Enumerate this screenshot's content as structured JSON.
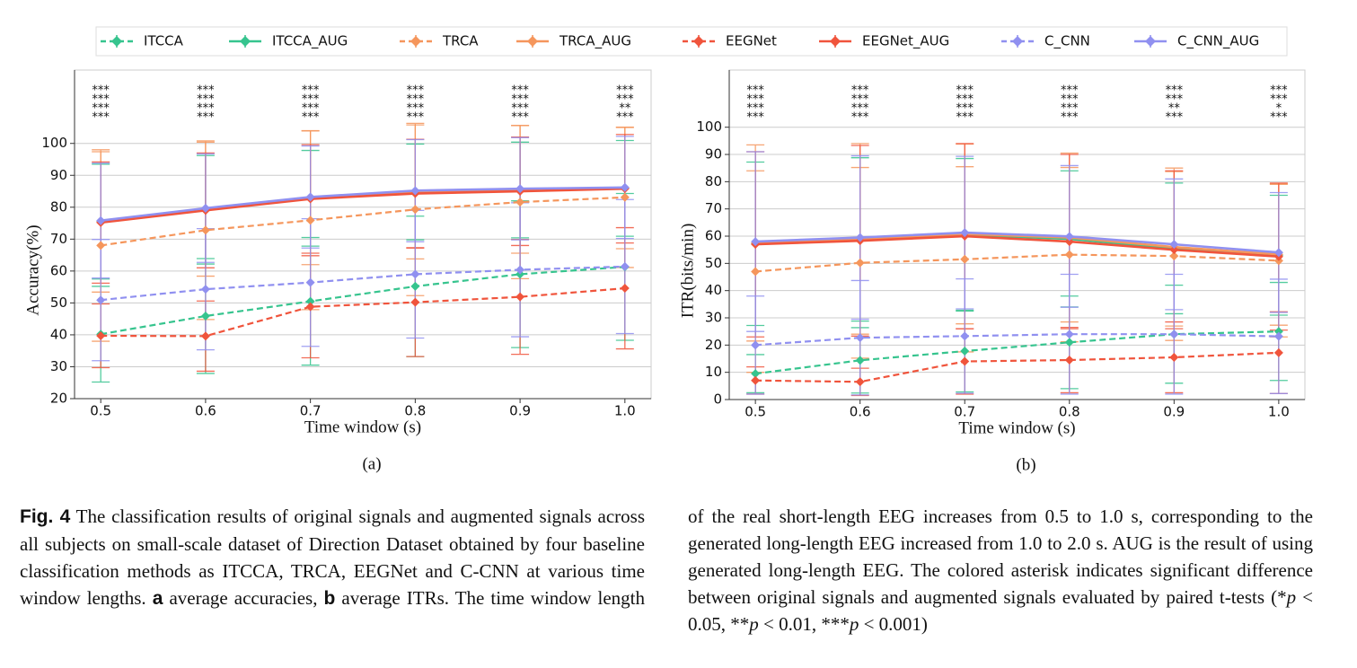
{
  "chart_data": [
    {
      "type": "line",
      "label": "(a)",
      "ylabel": "Accuracy(%)",
      "xlabel": "Time window (s)",
      "legend": "top",
      "grid": true,
      "x": [
        0.5,
        0.6,
        0.7,
        0.8,
        0.9,
        1.0
      ],
      "xlim": [
        0.475,
        1.025
      ],
      "xticks": [
        0.5,
        0.6,
        0.7,
        0.8,
        0.9,
        {
          "value": 1,
          "label": "1.0"
        }
      ],
      "ylim": [
        20,
        123
      ],
      "yticks": [
        20,
        30,
        40,
        50,
        60,
        70,
        80,
        90,
        100
      ],
      "series": [
        {
          "name": "ITCCA",
          "color": "#36c48e",
          "linestyle": "dashed",
          "values": [
            40.2,
            45.9,
            50.5,
            55.2,
            59.0,
            61.3
          ],
          "errors": [
            15,
            18,
            20,
            22,
            23,
            23
          ]
        },
        {
          "name": "ITCCA_AUG",
          "color": "#36c48e",
          "linestyle": "solid",
          "values": [
            75.5,
            79.2,
            82.8,
            84.8,
            85.4,
            85.9
          ],
          "errors": [
            18,
            17,
            15,
            15,
            15,
            15
          ],
          "significance": [
            "***",
            "***",
            "***",
            "***",
            "***",
            "***"
          ]
        },
        {
          "name": "TRCA",
          "color": "#f5965c",
          "linestyle": "dashed",
          "values": [
            68.0,
            72.8,
            75.9,
            79.3,
            81.6,
            83.1
          ],
          "errors": [
            30,
            28,
            28,
            27,
            24,
            22
          ]
        },
        {
          "name": "TRCA_AUG",
          "color": "#f5965c",
          "linestyle": "solid",
          "values": [
            75.4,
            79.4,
            83.0,
            84.8,
            85.6,
            86.0
          ],
          "errors": [
            22,
            21,
            21,
            21,
            20,
            19
          ],
          "significance": [
            "***",
            "***",
            "***",
            "***",
            "***",
            "**"
          ]
        },
        {
          "name": "EEGNet",
          "color": "#f0543c",
          "linestyle": "dashed",
          "values": [
            39.7,
            39.6,
            48.8,
            50.2,
            51.9,
            54.6
          ],
          "errors": [
            10,
            11,
            16,
            17,
            18,
            19
          ]
        },
        {
          "name": "EEGNet_AUG",
          "color": "#f0543c",
          "linestyle": "solid",
          "values": [
            75.2,
            79.0,
            82.6,
            84.3,
            85.0,
            85.8
          ],
          "errors": [
            19,
            18,
            17,
            17,
            17,
            17
          ],
          "significance": [
            "***",
            "***",
            "***",
            "***",
            "***",
            "***"
          ]
        },
        {
          "name": "C_CNN",
          "color": "#9090f0",
          "linestyle": "dashed",
          "values": [
            50.9,
            54.3,
            56.4,
            59.0,
            60.4,
            61.4
          ],
          "errors": [
            19,
            19,
            20,
            20,
            21,
            21
          ]
        },
        {
          "name": "C_CNN_AUG",
          "color": "#9090f0",
          "linestyle": "solid",
          "values": [
            75.8,
            79.7,
            83.2,
            85.2,
            85.8,
            86.2
          ],
          "errors": [
            18,
            17,
            16,
            16,
            16,
            16
          ],
          "significance": [
            "***",
            "***",
            "***",
            "***",
            "***",
            "***"
          ]
        }
      ]
    },
    {
      "type": "line",
      "label": "(b)",
      "ylabel": "ITR(bits/min)",
      "xlabel": "Time window (s)",
      "grid": true,
      "x": [
        0.5,
        0.6,
        0.7,
        0.8,
        0.9,
        1.0
      ],
      "xlim": [
        0.475,
        1.025
      ],
      "xticks": [
        0.5,
        0.6,
        0.7,
        0.8,
        0.9,
        {
          "value": 1,
          "label": "1.0"
        }
      ],
      "ylim": [
        0,
        121
      ],
      "yticks": [
        0,
        10,
        20,
        30,
        40,
        50,
        60,
        70,
        80,
        90,
        100
      ],
      "series": [
        {
          "name": "ITCCA",
          "color": "#36c48e",
          "linestyle": "dashed",
          "values": [
            9.5,
            14.4,
            17.8,
            21.0,
            24.0,
            25.0
          ],
          "errors": [
            7,
            12,
            15,
            17,
            18,
            18
          ]
        },
        {
          "name": "ITCCA_AUG",
          "color": "#36c48e",
          "linestyle": "solid",
          "values": [
            57.2,
            58.8,
            60.5,
            59.0,
            55.5,
            53.0
          ],
          "errors": [
            30,
            30,
            28,
            25,
            24,
            22
          ],
          "significance": [
            "***",
            "***",
            "***",
            "***",
            "***",
            "***"
          ]
        },
        {
          "name": "TRCA",
          "color": "#f5965c",
          "linestyle": "dashed",
          "values": [
            47.0,
            50.2,
            51.5,
            53.2,
            52.7,
            51.0
          ],
          "errors": [
            37,
            35,
            34,
            32,
            31,
            28
          ]
        },
        {
          "name": "TRCA_AUG",
          "color": "#f5965c",
          "linestyle": "solid",
          "values": [
            57.5,
            59.0,
            60.8,
            59.5,
            56.0,
            53.3
          ],
          "errors": [
            36,
            35,
            33,
            31,
            29,
            26
          ],
          "significance": [
            "***",
            "***",
            "***",
            "***",
            "**",
            "*"
          ]
        },
        {
          "name": "EEGNet",
          "color": "#f0543c",
          "linestyle": "dashed",
          "values": [
            7.0,
            6.5,
            14.0,
            14.5,
            15.5,
            17.2
          ],
          "errors": [
            5,
            5,
            12,
            12,
            13,
            15
          ]
        },
        {
          "name": "EEGNet_AUG",
          "color": "#f0543c",
          "linestyle": "solid",
          "values": [
            57.0,
            58.3,
            60.0,
            58.0,
            55.0,
            52.5
          ],
          "errors": [
            34,
            35,
            34,
            32,
            29,
            27
          ],
          "significance": [
            "***",
            "***",
            "***",
            "***",
            "***",
            "***"
          ]
        },
        {
          "name": "C_CNN",
          "color": "#9090f0",
          "linestyle": "dashed",
          "values": [
            20.0,
            22.7,
            23.3,
            24.0,
            24.0,
            23.2
          ],
          "errors": [
            18,
            21,
            21,
            22,
            22,
            21
          ]
        },
        {
          "name": "C_CNN_AUG",
          "color": "#9090f0",
          "linestyle": "solid",
          "values": [
            58.0,
            59.5,
            61.3,
            59.9,
            57.0,
            54.0
          ],
          "errors": [
            33,
            30,
            28,
            26,
            24,
            22
          ],
          "significance": [
            "***",
            "***",
            "***",
            "***",
            "***",
            "***"
          ]
        }
      ]
    }
  ],
  "caption": {
    "runs": [
      {
        "text": "Fig. 4",
        "style": "label"
      },
      {
        "text": " The classification results of original signals and augmented signals across all subjects on small-scale dataset of Direction Dataset obtained by four baseline classification methods as ITCCA, TRCA, EEGNet and C-CNN at various time window lengths. ",
        "style": "plain"
      },
      {
        "text": "a",
        "style": "bold"
      },
      {
        "text": " average accuracies, ",
        "style": "plain"
      },
      {
        "text": "b",
        "style": "bold"
      },
      {
        "text": " average ITRs. The time window length of the real short-length EEG increases from 0.5 to 1.0 s, corresponding to the generated long-length EEG increased from 1.0 to 2.0 s. AUG is the result of using generated long-length EEG. The colored asterisk indicates significant difference between original signals and augmented signals evaluated by paired t-tests (*",
        "style": "plain"
      },
      {
        "text": "p",
        "style": "italic"
      },
      {
        "text": " < 0.05, **",
        "style": "plain"
      },
      {
        "text": "p",
        "style": "italic"
      },
      {
        "text": " < 0.01, ***",
        "style": "plain"
      },
      {
        "text": "p",
        "style": "italic"
      },
      {
        "text": " < 0.001)",
        "style": "plain"
      }
    ]
  }
}
